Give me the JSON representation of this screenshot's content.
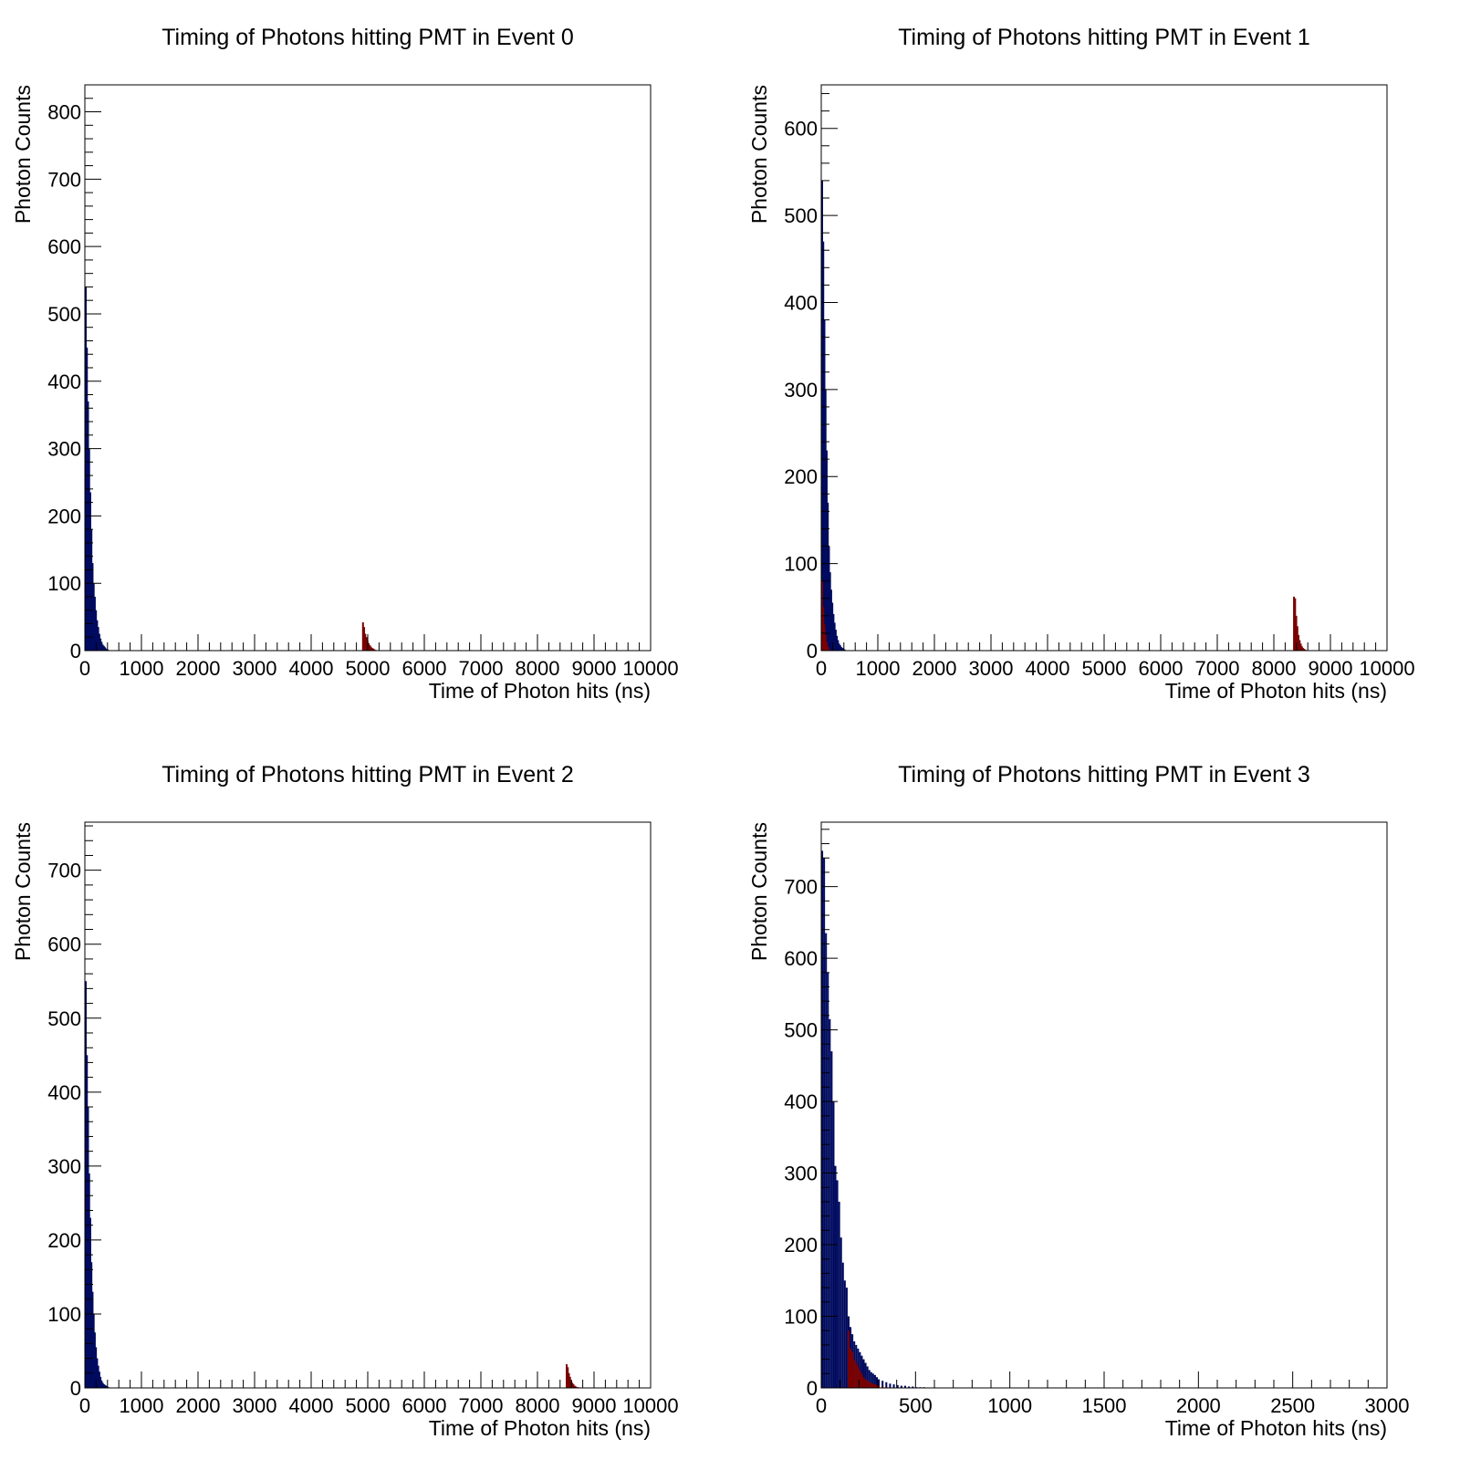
{
  "chart_data": [
    {
      "type": "bar",
      "title": "Timing of Photons hitting PMT in Event 0",
      "xlabel": "Time of Photon hits (ns)",
      "ylabel": "Photon Counts",
      "xlim": [
        0,
        10000
      ],
      "ylim": [
        0,
        840
      ],
      "xticks": [
        0,
        1000,
        2000,
        3000,
        4000,
        5000,
        6000,
        7000,
        8000,
        9000,
        10000
      ],
      "xtick_labels": [
        "0",
        "1000",
        "2000",
        "3000",
        "4000",
        "5000",
        "6000",
        "7000",
        "8000",
        "9000",
        "10000"
      ],
      "yticks": [
        0,
        100,
        200,
        300,
        400,
        500,
        600,
        700,
        800
      ],
      "series": [
        {
          "color": "#000a5e",
          "x": [
            0,
            20,
            40,
            60,
            80,
            100,
            120,
            140,
            160,
            180,
            200,
            220,
            240,
            260,
            280,
            300,
            320,
            340,
            360,
            380,
            400
          ],
          "values": [
            540,
            450,
            370,
            300,
            235,
            180,
            130,
            100,
            80,
            60,
            45,
            35,
            25,
            18,
            13,
            9,
            7,
            5,
            3,
            2,
            1
          ]
        },
        {
          "color": "#7a0000",
          "x": [
            4900,
            4920,
            4940,
            4960,
            4980,
            5000,
            5020,
            5040,
            5060,
            5080,
            5100,
            5120
          ],
          "values": [
            42,
            35,
            25,
            20,
            15,
            11,
            8,
            6,
            4,
            3,
            2,
            1
          ]
        }
      ]
    },
    {
      "type": "bar",
      "title": "Timing of Photons hitting PMT in Event 1",
      "xlabel": "Time of Photon hits (ns)",
      "ylabel": "Photon Counts",
      "xlim": [
        0,
        10000
      ],
      "ylim": [
        0,
        650
      ],
      "xticks": [
        0,
        1000,
        2000,
        3000,
        4000,
        5000,
        6000,
        7000,
        8000,
        9000,
        10000
      ],
      "xtick_labels": [
        "0",
        "1000",
        "2000",
        "3000",
        "4000",
        "5000",
        "6000",
        "7000",
        "8000",
        "9000",
        "10000"
      ],
      "yticks": [
        0,
        100,
        200,
        300,
        400,
        500,
        600
      ],
      "series": [
        {
          "color": "#000a5e",
          "x": [
            0,
            20,
            40,
            60,
            80,
            100,
            120,
            140,
            160,
            180,
            200,
            220,
            240,
            260,
            280,
            300,
            320,
            340,
            360,
            380,
            400
          ],
          "values": [
            540,
            470,
            380,
            300,
            230,
            170,
            120,
            90,
            70,
            55,
            42,
            32,
            24,
            17,
            12,
            8,
            6,
            4,
            3,
            2,
            1
          ]
        },
        {
          "color": "#7a0000",
          "x": [
            0,
            20,
            40,
            60,
            80,
            100,
            120
          ],
          "values": [
            80,
            50,
            30,
            18,
            10,
            5,
            2
          ]
        },
        {
          "color": "#7a0000",
          "x": [
            8340,
            8360,
            8380,
            8400,
            8420,
            8440,
            8460,
            8480,
            8500,
            8520,
            8540
          ],
          "values": [
            62,
            60,
            40,
            28,
            18,
            12,
            8,
            5,
            3,
            2,
            1
          ]
        }
      ]
    },
    {
      "type": "bar",
      "title": "Timing of Photons hitting PMT in Event 2",
      "xlabel": "Time of Photon hits (ns)",
      "ylabel": "Photon Counts",
      "xlim": [
        0,
        10000
      ],
      "ylim": [
        0,
        765
      ],
      "xticks": [
        0,
        1000,
        2000,
        3000,
        4000,
        5000,
        6000,
        7000,
        8000,
        9000,
        10000
      ],
      "xtick_labels": [
        "0",
        "1000",
        "2000",
        "3000",
        "4000",
        "5000",
        "6000",
        "7000",
        "8000",
        "9000",
        "10000"
      ],
      "yticks": [
        0,
        100,
        200,
        300,
        400,
        500,
        600,
        700
      ],
      "series": [
        {
          "color": "#000a5e",
          "x": [
            0,
            20,
            40,
            60,
            80,
            100,
            120,
            140,
            160,
            180,
            200,
            220,
            240,
            260,
            280,
            300,
            320,
            340,
            360,
            380,
            400
          ],
          "values": [
            550,
            450,
            380,
            290,
            230,
            170,
            130,
            100,
            75,
            55,
            40,
            30,
            22,
            15,
            10,
            7,
            5,
            4,
            3,
            2,
            1
          ]
        },
        {
          "color": "#7a0000",
          "x": [
            8500,
            8520,
            8540,
            8560,
            8580,
            8600,
            8620,
            8640,
            8660,
            8680,
            8700
          ],
          "values": [
            32,
            28,
            20,
            15,
            10,
            7,
            5,
            3,
            2,
            1,
            1
          ]
        }
      ]
    },
    {
      "type": "bar",
      "title": "Timing of Photons hitting PMT in Event 3",
      "xlabel": "Time of Photon hits (ns)",
      "ylabel": "Photon Counts",
      "xlim": [
        0,
        3000
      ],
      "ylim": [
        0,
        790
      ],
      "xticks": [
        0,
        500,
        1000,
        1500,
        2000,
        2500,
        3000
      ],
      "xtick_labels": [
        "0",
        "500",
        "1000",
        "1500",
        "2000",
        "2500",
        "3000"
      ],
      "yticks": [
        0,
        100,
        200,
        300,
        400,
        500,
        600,
        700
      ],
      "series": [
        {
          "color": "#000a5e",
          "x": [
            0,
            10,
            20,
            30,
            40,
            50,
            60,
            70,
            80,
            90,
            100,
            110,
            120,
            130,
            140,
            150,
            160,
            170,
            180,
            190,
            200,
            210,
            220,
            230,
            240,
            250,
            260,
            270,
            280,
            290,
            300,
            320,
            340,
            360,
            380,
            400,
            420,
            440,
            460,
            480,
            500,
            520,
            540
          ],
          "values": [
            750,
            740,
            635,
            580,
            515,
            470,
            400,
            310,
            290,
            260,
            210,
            175,
            150,
            140,
            100,
            85,
            75,
            65,
            60,
            55,
            50,
            45,
            40,
            35,
            30,
            25,
            22,
            20,
            18,
            15,
            12,
            10,
            8,
            6,
            5,
            4,
            3,
            3,
            2,
            2,
            1,
            1,
            1
          ]
        },
        {
          "color": "#7a0000",
          "x": [
            140,
            150,
            160,
            170,
            180,
            190,
            200,
            210,
            220,
            230,
            240,
            250,
            260,
            270,
            280,
            290,
            300,
            320,
            340,
            360
          ],
          "values": [
            80,
            55,
            50,
            40,
            35,
            30,
            25,
            20,
            15,
            12,
            10,
            8,
            7,
            6,
            5,
            4,
            3,
            2,
            1,
            1
          ]
        }
      ]
    }
  ]
}
